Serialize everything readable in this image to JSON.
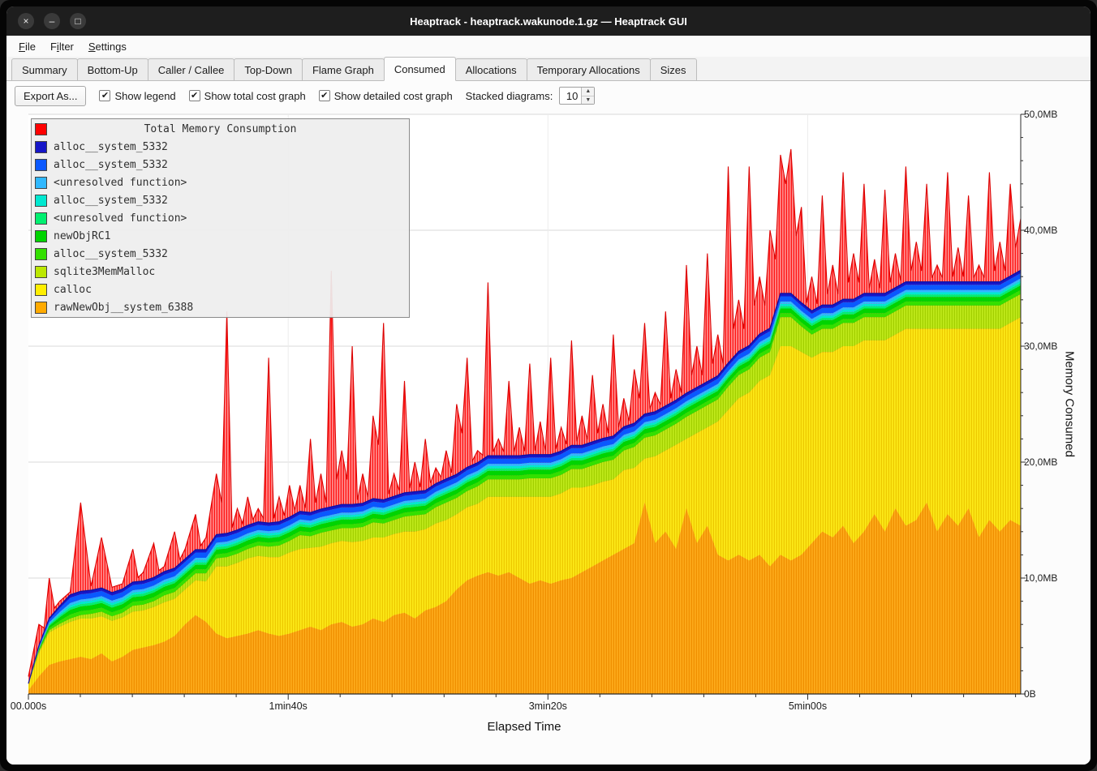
{
  "window": {
    "title": "Heaptrack - heaptrack.wakunode.1.gz — Heaptrack GUI"
  },
  "titlebar_buttons": [
    {
      "name": "close-button",
      "glyph": "×"
    },
    {
      "name": "minimize-button",
      "glyph": "–"
    },
    {
      "name": "maximize-button",
      "glyph": "□"
    }
  ],
  "menu": {
    "items": [
      {
        "label": "File",
        "underline": 0
      },
      {
        "label": "Filter",
        "underline": 1
      },
      {
        "label": "Settings",
        "underline": 0
      }
    ]
  },
  "tabs": [
    {
      "label": "Summary",
      "active": false
    },
    {
      "label": "Bottom-Up",
      "active": false
    },
    {
      "label": "Caller / Callee",
      "active": false
    },
    {
      "label": "Top-Down",
      "active": false
    },
    {
      "label": "Flame Graph",
      "active": false
    },
    {
      "label": "Consumed",
      "active": true
    },
    {
      "label": "Allocations",
      "active": false
    },
    {
      "label": "Temporary Allocations",
      "active": false
    },
    {
      "label": "Sizes",
      "active": false
    }
  ],
  "toolbar": {
    "export_label": "Export As...",
    "checkboxes": [
      {
        "label": "Show legend",
        "checked": true
      },
      {
        "label": "Show total cost graph",
        "checked": true
      },
      {
        "label": "Show detailed cost graph",
        "checked": true
      }
    ],
    "stacked_label": "Stacked diagrams:",
    "stacked_value": "10"
  },
  "chart_data": {
    "type": "area",
    "title": "Total Memory Consumption",
    "xlabel": "Elapsed Time",
    "ylabel": "Memory Consumed",
    "x_ticks": [
      "00.000s",
      "1min40s",
      "3min20s",
      "5min00s"
    ],
    "x_tick_seconds": [
      0,
      100,
      200,
      300
    ],
    "x_range_seconds": [
      0,
      382
    ],
    "y_ticks": [
      "0B",
      "10,0MB",
      "20,0MB",
      "30,0MB",
      "40,0MB",
      "50,0MB"
    ],
    "y_range_mb": [
      0,
      50
    ],
    "grid": true,
    "legend_position": "top-left",
    "legend": [
      {
        "label": "Total Memory Consumption",
        "color": "#ff0000",
        "title_row": true
      },
      {
        "label": "alloc__system_5332",
        "color": "#1616c8"
      },
      {
        "label": "alloc__system_5332",
        "color": "#0a58ff"
      },
      {
        "label": "<unresolved function>",
        "color": "#30b8ff"
      },
      {
        "label": "alloc__system_5332",
        "color": "#00e8d0"
      },
      {
        "label": "<unresolved function>",
        "color": "#00f070"
      },
      {
        "label": "newObjRC1",
        "color": "#00d400"
      },
      {
        "label": "alloc__system_5332",
        "color": "#33e000"
      },
      {
        "label": "sqlite3MemMalloc",
        "color": "#bce800"
      },
      {
        "label": "calloc",
        "color": "#ffee00"
      },
      {
        "label": "rawNewObj__system_6388",
        "color": "#ffaa00"
      }
    ],
    "total": {
      "name": "Total Memory Consumption",
      "color": "#ff0000",
      "values_mb": [
        1.5,
        6,
        10,
        8,
        8.8,
        16.5,
        9.3,
        13.5,
        9.2,
        9.5,
        12.5,
        10.5,
        13,
        11,
        14,
        12.5,
        15.5,
        13.5,
        19,
        33,
        16,
        17,
        16,
        29,
        17,
        18,
        18,
        22,
        19,
        36.5,
        21,
        30,
        19,
        24,
        32,
        19,
        27,
        20,
        22,
        19.5,
        21,
        25,
        29,
        21,
        35.5,
        22,
        27,
        23,
        28.5,
        23.5,
        29,
        23,
        30.5,
        24,
        27.5,
        25,
        31,
        25.5,
        28,
        32,
        26,
        33,
        28,
        37,
        30,
        38,
        31,
        45.5,
        34,
        45.5,
        36,
        40,
        46.5,
        47,
        42,
        36,
        43,
        37,
        45,
        38,
        44,
        37.5,
        43.5,
        38,
        45.5,
        39,
        44,
        37,
        45,
        38.5,
        43,
        37,
        45,
        39,
        44,
        41
      ]
    },
    "series": [
      {
        "name": "rawNewObj__system_6388",
        "color": "#ffaa00",
        "values_mb": [
          0.3,
          1.5,
          2.5,
          2.8,
          3.0,
          3.2,
          3.0,
          3.5,
          2.8,
          3.2,
          3.8,
          4.0,
          4.2,
          4.5,
          5.0,
          6.0,
          6.8,
          6.2,
          5.2,
          4.8,
          5.0,
          5.2,
          5.5,
          5.2,
          5.0,
          5.2,
          5.5,
          5.8,
          5.5,
          6.0,
          6.2,
          5.8,
          6.0,
          6.5,
          6.2,
          6.8,
          7.0,
          6.5,
          7.2,
          7.5,
          8.0,
          9.0,
          9.8,
          10.2,
          10.5,
          10.2,
          10.5,
          10.0,
          9.5,
          9.8,
          9.5,
          9.8,
          10.0,
          10.5,
          11.0,
          11.5,
          12.0,
          12.5,
          13.0,
          16.5,
          13.0,
          14.0,
          12.5,
          16.0,
          13.0,
          14.5,
          12.0,
          11.5,
          12.0,
          11.5,
          12.0,
          11.0,
          12.0,
          11.5,
          12.0,
          13.0,
          14.0,
          13.5,
          14.5,
          13.0,
          14.0,
          15.5,
          14.0,
          16.0,
          14.5,
          15.0,
          16.5,
          14.0,
          15.5,
          14.5,
          16.0,
          13.5,
          15.0,
          14.0,
          15.0,
          14.5
        ]
      },
      {
        "name": "calloc",
        "color": "#ffee00",
        "values_mb": [
          0.5,
          2.0,
          2.8,
          3.0,
          3.2,
          3.3,
          3.5,
          3.2,
          3.5,
          3.4,
          3.3,
          3.2,
          3.3,
          3.4,
          3.2,
          3.0,
          3.0,
          3.5,
          5.8,
          6.2,
          6.3,
          6.5,
          6.4,
          6.6,
          6.8,
          7.0,
          7.0,
          6.8,
          7.2,
          7.0,
          7.0,
          7.3,
          7.2,
          7.0,
          7.3,
          7.0,
          7.0,
          7.5,
          7.0,
          7.2,
          7.0,
          6.5,
          6.3,
          6.2,
          6.5,
          6.8,
          6.5,
          7.0,
          7.5,
          7.2,
          7.5,
          7.5,
          7.8,
          7.3,
          7.0,
          6.8,
          6.5,
          6.8,
          6.5,
          3.8,
          7.5,
          7.0,
          9.0,
          6.0,
          9.5,
          8.5,
          11.5,
          13.0,
          13.5,
          14.5,
          15.0,
          16.5,
          18.0,
          18.5,
          17.5,
          16.0,
          15.5,
          16.0,
          15.5,
          17.0,
          16.5,
          15.0,
          16.5,
          15.0,
          17.0,
          16.5,
          15.0,
          17.5,
          16.0,
          17.0,
          15.5,
          18.0,
          16.5,
          17.5,
          17.0,
          18.0
        ]
      },
      {
        "name": "sqlite3MemMalloc",
        "color": "#bce800",
        "values_mb": [
          0.1,
          0.15,
          0.2,
          0.25,
          0.3,
          0.3,
          0.4,
          0.4,
          0.4,
          0.4,
          0.5,
          0.5,
          0.5,
          0.6,
          0.6,
          0.6,
          0.6,
          0.7,
          0.7,
          0.8,
          0.8,
          0.8,
          0.9,
          0.9,
          1.0,
          1.0,
          1.2,
          1.0,
          1.2,
          1.1,
          1.1,
          1.2,
          1.2,
          1.3,
          1.2,
          1.2,
          1.3,
          1.4,
          1.3,
          1.4,
          1.5,
          1.4,
          1.4,
          1.5,
          1.5,
          1.5,
          1.5,
          1.5,
          1.6,
          1.6,
          1.6,
          1.6,
          1.6,
          1.6,
          1.7,
          1.7,
          1.7,
          1.7,
          1.8,
          1.8,
          1.8,
          1.8,
          1.8,
          1.9,
          1.9,
          1.9,
          1.9,
          2.0,
          2.0,
          2.0,
          2.0,
          2.0,
          2.5,
          2.5,
          2.2,
          2.0,
          2.0,
          2.0,
          2.0,
          2.0,
          2.0,
          2.0,
          2.0,
          2.0,
          2.0,
          2.0,
          2.0,
          2.0,
          2.0,
          2.0,
          2.0,
          2.0,
          2.0,
          2.0,
          2.0,
          2.0
        ]
      },
      {
        "name": "alloc__system_5332",
        "color": "#33e000",
        "constant_mb": 0.35
      },
      {
        "name": "newObjRC1",
        "color": "#00d400",
        "constant_mb": 0.4
      },
      {
        "name": "<unresolved function>",
        "color": "#00f070",
        "constant_mb": 0.2
      },
      {
        "name": "alloc__system_5332",
        "color": "#00e8d0",
        "constant_mb": 0.2
      },
      {
        "name": "<unresolved function>",
        "color": "#30b8ff",
        "constant_mb": 0.2
      },
      {
        "name": "alloc__system_5332",
        "color": "#0a58ff",
        "constant_mb": 0.45
      },
      {
        "name": "alloc__system_5332",
        "color": "#1616c8",
        "constant_mb": 0.25
      }
    ]
  }
}
